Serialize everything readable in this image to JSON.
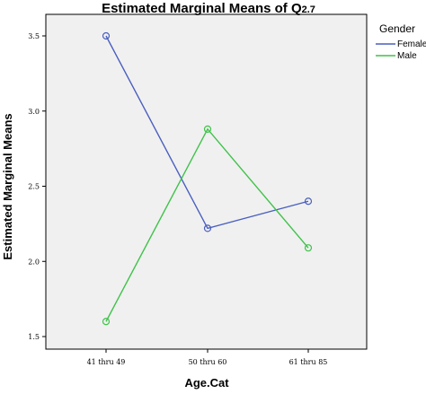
{
  "chart_data": {
    "type": "line",
    "title": "Estimated Marginal Means of Q",
    "title_sub": "2.7",
    "xlabel": "Age.Cat",
    "ylabel": "Estimated Marginal Means",
    "categories": [
      "41 thru 49",
      "50 thru 60",
      "61 thru 85"
    ],
    "y_ticks": [
      "1.5",
      "2.0",
      "2.5",
      "3.0",
      "3.5"
    ],
    "ylim": [
      1.5,
      3.5
    ],
    "legend": {
      "title": "Gender",
      "placement": "top-right"
    },
    "series": [
      {
        "name": "Female",
        "color": "#4a5fbf",
        "values": [
          3.5,
          2.22,
          2.4
        ]
      },
      {
        "name": "Male",
        "color": "#3fc24a",
        "values": [
          1.6,
          2.88,
          2.09
        ]
      }
    ],
    "plot_background": "#f0f0f0",
    "grid": false
  }
}
